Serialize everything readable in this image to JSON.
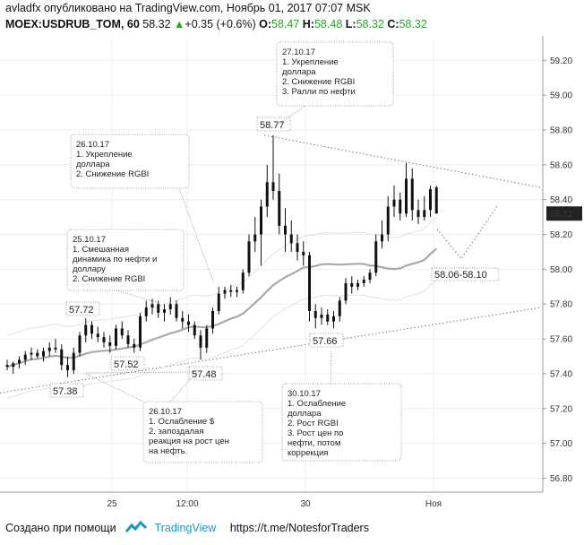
{
  "header": {
    "author": "avladfx",
    "published_text": "опубликовано на TradingView.com, Ноябрь 01, 2017 07:07 MSK",
    "symbol": "MOEX:USDRUB_TOM, 60",
    "last": "58.32",
    "arrow": "▲",
    "change": "+0.35 (+0.6%)",
    "o_label": "O:",
    "o_value": "58.47",
    "h_label": "H:",
    "h_value": "58.48",
    "l_label": "L:",
    "l_value": "58.32",
    "c_label": "C:",
    "c_value": "58.32"
  },
  "footer": {
    "created_with": "Создано при помощи",
    "brand": "TradingView",
    "link": "https://t.me/NotesforTraders"
  },
  "chart_data": {
    "type": "candlestick",
    "title": "",
    "ylim": [
      56.72,
      59.32
    ],
    "y_ticks": [
      "59.20",
      "59.00",
      "58.80",
      "58.60",
      "58.40",
      "58.20",
      "58.00",
      "57.80",
      "57.60",
      "57.40",
      "57.20",
      "57.00",
      "56.80"
    ],
    "x_ticks": [
      "25",
      "12:00",
      "30",
      "Ноя"
    ],
    "current_price_label": "58.32",
    "bars": [
      [
        57.45,
        57.48,
        57.42,
        57.44
      ],
      [
        57.44,
        57.47,
        57.4,
        57.46
      ],
      [
        57.46,
        57.5,
        57.43,
        57.48
      ],
      [
        57.48,
        57.53,
        57.45,
        57.51
      ],
      [
        57.51,
        57.55,
        57.48,
        57.52
      ],
      [
        57.52,
        57.54,
        57.49,
        57.5
      ],
      [
        57.5,
        57.55,
        57.47,
        57.53
      ],
      [
        57.53,
        57.58,
        57.5,
        57.55
      ],
      [
        57.55,
        57.6,
        57.52,
        57.54
      ],
      [
        57.54,
        57.57,
        57.42,
        57.45
      ],
      [
        57.45,
        57.5,
        57.38,
        57.42
      ],
      [
        57.42,
        57.55,
        57.4,
        57.52
      ],
      [
        57.52,
        57.64,
        57.5,
        57.62
      ],
      [
        57.62,
        57.72,
        57.58,
        57.68
      ],
      [
        57.68,
        57.7,
        57.6,
        57.63
      ],
      [
        57.63,
        57.67,
        57.58,
        57.61
      ],
      [
        57.61,
        57.64,
        57.55,
        57.58
      ],
      [
        57.58,
        57.62,
        57.52,
        57.56
      ],
      [
        57.56,
        57.68,
        57.54,
        57.66
      ],
      [
        57.66,
        57.7,
        57.6,
        57.62
      ],
      [
        57.62,
        57.65,
        57.55,
        57.57
      ],
      [
        57.57,
        57.6,
        57.52,
        57.55
      ],
      [
        57.55,
        57.75,
        57.53,
        57.73
      ],
      [
        57.73,
        57.82,
        57.7,
        57.78
      ],
      [
        57.78,
        57.83,
        57.74,
        57.8
      ],
      [
        57.8,
        57.82,
        57.72,
        57.75
      ],
      [
        57.75,
        57.8,
        57.7,
        57.77
      ],
      [
        57.77,
        57.84,
        57.74,
        57.8
      ],
      [
        57.8,
        57.82,
        57.7,
        57.72
      ],
      [
        57.72,
        57.76,
        57.66,
        57.7
      ],
      [
        57.7,
        57.74,
        57.64,
        57.68
      ],
      [
        57.68,
        57.7,
        57.6,
        57.62
      ],
      [
        57.62,
        57.65,
        57.48,
        57.55
      ],
      [
        57.55,
        57.68,
        57.52,
        57.66
      ],
      [
        57.66,
        57.78,
        57.63,
        57.76
      ],
      [
        57.76,
        57.9,
        57.74,
        57.86
      ],
      [
        57.86,
        57.9,
        57.83,
        57.88
      ],
      [
        57.88,
        57.91,
        57.84,
        57.87
      ],
      [
        57.87,
        57.9,
        57.84,
        57.88
      ],
      [
        57.88,
        58.0,
        57.86,
        57.98
      ],
      [
        57.98,
        58.2,
        57.96,
        58.16
      ],
      [
        58.16,
        58.3,
        58.1,
        58.2
      ],
      [
        58.2,
        58.4,
        58.02,
        58.36
      ],
      [
        58.36,
        58.6,
        58.3,
        58.5
      ],
      [
        58.5,
        58.77,
        58.4,
        58.45
      ],
      [
        58.45,
        58.55,
        58.2,
        58.25
      ],
      [
        58.25,
        58.35,
        58.1,
        58.2
      ],
      [
        58.2,
        58.28,
        58.1,
        58.15
      ],
      [
        58.15,
        58.2,
        58.05,
        58.1
      ],
      [
        58.1,
        58.16,
        58.02,
        58.08
      ],
      [
        58.08,
        58.1,
        57.7,
        57.76
      ],
      [
        57.76,
        57.8,
        57.66,
        57.72
      ],
      [
        57.72,
        57.78,
        57.68,
        57.74
      ],
      [
        57.74,
        57.77,
        57.68,
        57.7
      ],
      [
        57.7,
        57.76,
        57.66,
        57.73
      ],
      [
        57.73,
        57.84,
        57.7,
        57.82
      ],
      [
        57.82,
        57.95,
        57.8,
        57.92
      ],
      [
        57.92,
        57.96,
        57.86,
        57.9
      ],
      [
        57.9,
        57.94,
        57.88,
        57.92
      ],
      [
        57.92,
        57.96,
        57.9,
        57.94
      ],
      [
        57.94,
        58.0,
        57.92,
        57.98
      ],
      [
        57.98,
        58.2,
        57.96,
        58.16
      ],
      [
        58.16,
        58.28,
        58.12,
        58.2
      ],
      [
        58.2,
        58.42,
        58.16,
        58.36
      ],
      [
        58.36,
        58.48,
        58.3,
        58.4
      ],
      [
        58.4,
        58.44,
        58.28,
        58.32
      ],
      [
        58.32,
        58.61,
        58.3,
        58.52
      ],
      [
        58.52,
        58.58,
        58.28,
        58.34
      ],
      [
        58.34,
        58.4,
        58.26,
        58.3
      ],
      [
        58.3,
        58.42,
        58.28,
        58.34
      ],
      [
        58.34,
        58.48,
        58.3,
        58.46
      ],
      [
        58.47,
        58.48,
        58.32,
        58.32
      ]
    ],
    "price_labels": [
      "58.77",
      "57.72",
      "57.52",
      "57.38",
      "57.48",
      "57.66"
    ],
    "range_label": "58.06-58.10",
    "annotations": [
      {
        "lines": [
          "27.10.17",
          "1. Укрепление",
          "доллара",
          "2. Снижение RGBI",
          "3. Ралли по нефти"
        ]
      },
      {
        "lines": [
          "26.10.17",
          "1. Укрепление",
          "доллара",
          "2. Снижение RGBI"
        ]
      },
      {
        "lines": [
          "25.10.17",
          "1. Смешанная",
          "динамика по нефти и",
          "доллару",
          "2. Снижение RGBI"
        ]
      },
      {
        "lines": [
          "26.10.17",
          "1. Ослабление $",
          "2. запоздалая",
          "реакция на рост цен",
          "на нефть."
        ]
      },
      {
        "lines": [
          "30.10.17",
          "1. Ослабление",
          "доллара",
          "2. Рост RGBI",
          "3. Рост цен по",
          "нефти, потом",
          "коррекция"
        ]
      }
    ]
  }
}
